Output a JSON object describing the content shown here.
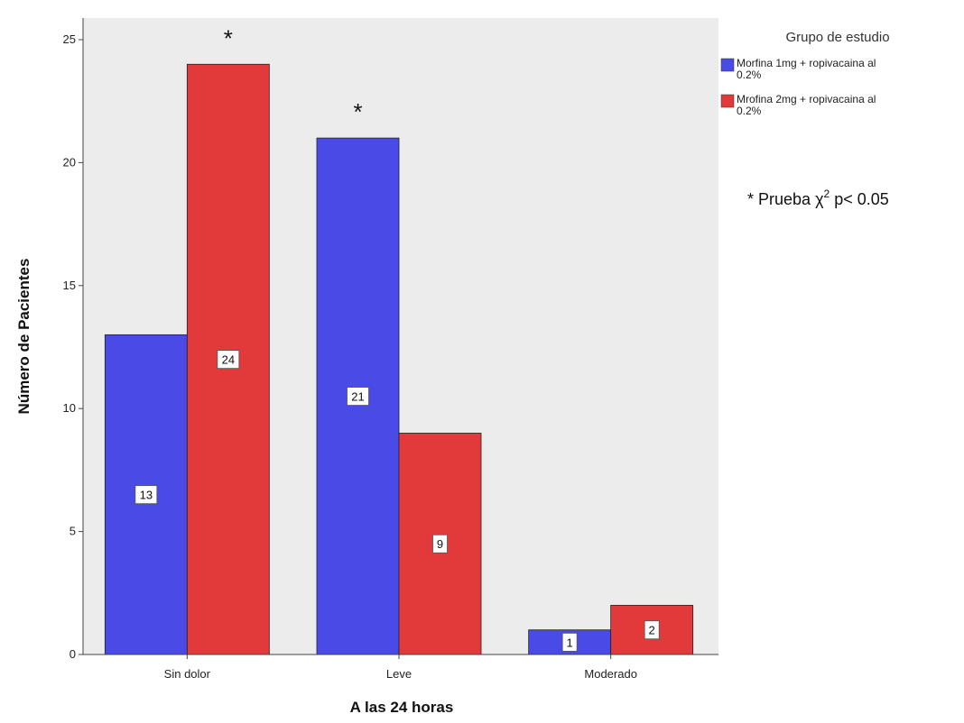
{
  "chart_data": {
    "type": "bar",
    "title": "",
    "xlabel": "A las 24 horas",
    "ylabel": "Número de Pacientes",
    "categories": [
      "Sin dolor",
      "Leve",
      "Moderado"
    ],
    "series": [
      {
        "name": "Morfina 1mg + ropivacaina al 0.2%",
        "values": [
          13,
          21,
          1
        ],
        "color": "#4a4ae6"
      },
      {
        "name": "Mrofina 2mg + ropivacaina al 0.2%",
        "values": [
          24,
          9,
          2
        ],
        "color": "#e23a3a"
      }
    ],
    "ylim": [
      0,
      25
    ],
    "yticks": [
      0,
      5,
      10,
      15,
      20,
      25
    ],
    "significance": [
      {
        "category": "Sin dolor",
        "series_index": 1,
        "marker": "*"
      },
      {
        "category": "Leve",
        "series_index": 0,
        "marker": "*"
      }
    ],
    "legend": {
      "title": "Grupo de estudio",
      "placement": "right"
    },
    "annotation": {
      "prefix": "* Prueba ",
      "symbol": "χ",
      "superscript": "2",
      "suffix": " p< 0.05"
    },
    "plot_background": "#ececec",
    "grid": false
  }
}
